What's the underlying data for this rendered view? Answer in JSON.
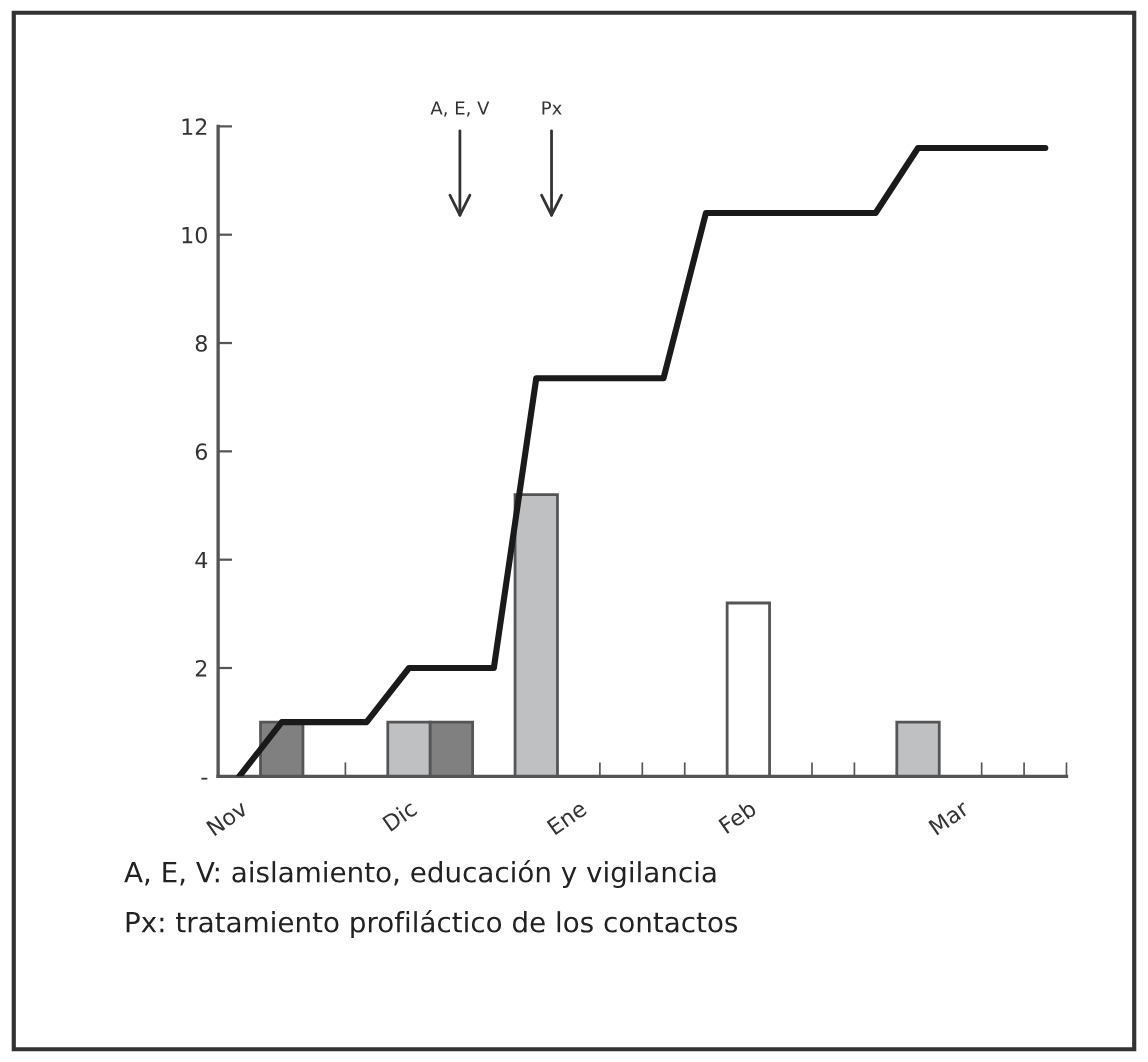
{
  "chart_data": {
    "type": "bar",
    "categories": [
      "Nov",
      null,
      null,
      null,
      "Dic",
      null,
      null,
      null,
      "Ene",
      null,
      null,
      null,
      "Feb",
      null,
      null,
      null,
      null,
      "Mar",
      null,
      null
    ],
    "series": [
      {
        "values": [
          null,
          1,
          null,
          null,
          1,
          1,
          null,
          5.2,
          null,
          null,
          null,
          null,
          3.2,
          null,
          null,
          null,
          1,
          null,
          null,
          null
        ],
        "colors": [
          "#808080",
          "#808080",
          "#808080",
          "#808080",
          "#bfc0c2",
          "#808080",
          "#808080",
          "#bfc0c2",
          "#808080",
          "#808080",
          "#808080",
          "#808080",
          "#ffffff",
          "#808080",
          "#808080",
          "#808080",
          "#bfc0c2",
          "#808080",
          "#808080",
          "#808080"
        ]
      },
      {
        "type": "line",
        "color": "#1a1a1a",
        "values": [
          0,
          1,
          1,
          1,
          2,
          2,
          2,
          7.35,
          7.35,
          7.35,
          7.35,
          10.4,
          10.4,
          10.4,
          10.4,
          10.4,
          11.6,
          11.6,
          11.6,
          11.6
        ]
      }
    ],
    "ylim": [
      0,
      12
    ],
    "yticks": [
      {
        "value": 0,
        "label": "-"
      },
      2,
      4,
      6,
      8,
      10,
      12
    ],
    "grid": false,
    "legend": false,
    "annotations": [
      "A, E, V",
      "Px",
      "A, E, V: aislamiento, educación y vigilancia",
      "Px: tratamiento profiláctico de los contactos"
    ]
  }
}
